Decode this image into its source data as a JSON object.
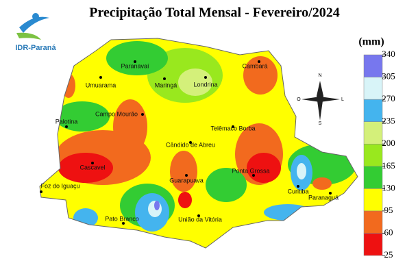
{
  "title": "Precipitação Total Mensal - Fevereiro/2024",
  "logo": "IDR-Paraná",
  "legend": {
    "unit": "(mm)",
    "ticks": [
      25,
      60,
      95,
      130,
      165,
      200,
      235,
      270,
      305,
      340
    ],
    "colors": [
      "#ee1111",
      "#f26a1e",
      "#ffff00",
      "#33cc33",
      "#99e81e",
      "#d4f07a",
      "#44b4ee",
      "#d8f4f8",
      "#7777ee"
    ]
  },
  "compass": {
    "north": "N",
    "south": "S",
    "west": "O",
    "east": "L"
  },
  "cities": [
    "Paranavaí",
    "Cambará",
    "Umuarama",
    "Maringá",
    "Londrina",
    "Campo Mourão",
    "Palotina",
    "Telêmaco Borba",
    "Cândido de Abreu",
    "Cascavel",
    "Ponta Grossa",
    "Foz do Iguaçu",
    "Guarapuava",
    "Curitiba",
    "Paranaguá",
    "Pato Branco",
    "União da Vitória"
  ]
}
